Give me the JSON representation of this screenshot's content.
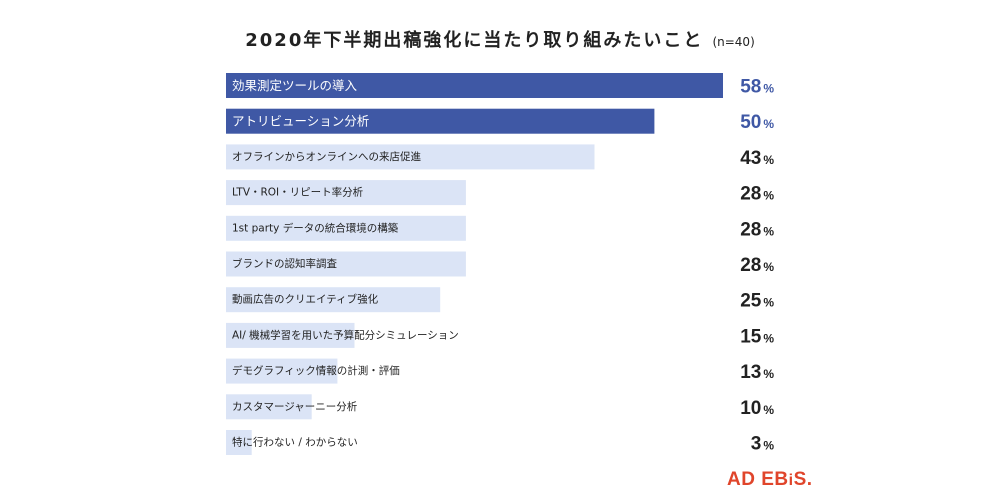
{
  "chart_data": {
    "type": "bar",
    "orientation": "horizontal",
    "title": "2020年下半期出稿強化に当たり取り組みたいこと",
    "subtitle": "(n=40)",
    "value_unit": "%",
    "xlim": [
      0,
      58
    ],
    "grid": false,
    "legend": "none",
    "categories": [
      "効果測定ツールの導入",
      "アトリビューション分析",
      "オフラインからオンラインへの来店促進",
      "LTV・ROI・リピート率分析",
      "1st party データの統合環境の構築",
      "ブランドの認知率調査",
      "動画広告のクリエイティブ強化",
      "AI/ 機械学習を用いた予算配分シミュレーション",
      "デモグラフィック情報の計測・評価",
      "カスタマージャーニー分析",
      "特に行わない / わからない"
    ],
    "values": [
      58,
      50,
      43,
      28,
      28,
      28,
      25,
      15,
      13,
      10,
      3
    ],
    "highlight_count": 2
  },
  "colors": {
    "highlight_bar": "#3f58a5",
    "highlight_value": "#3f58a5",
    "normal_bar": "#dbe4f6",
    "normal_value": "#222222",
    "highlight_label": "#ffffff",
    "normal_label": "#222222"
  },
  "logo": {
    "text_a": "AD EB",
    "text_b": "i",
    "text_c": "S.",
    "color": "#e0452b"
  }
}
